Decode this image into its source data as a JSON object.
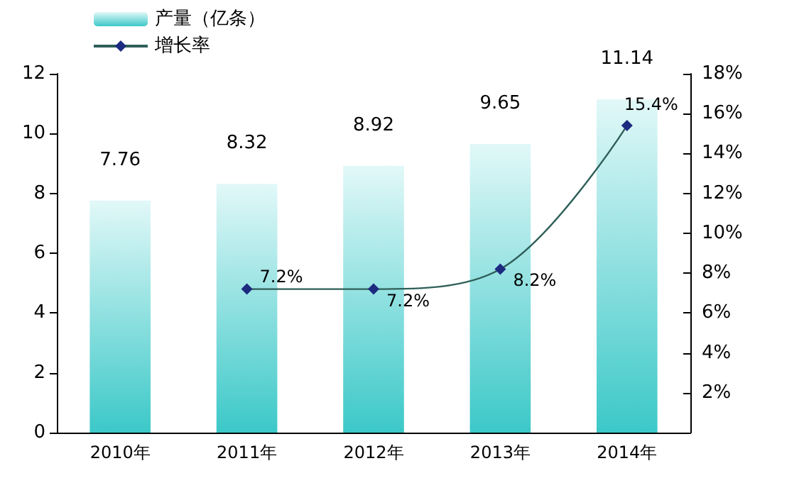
{
  "chart_data": {
    "type": "bar",
    "categories": [
      "2010年",
      "2011年",
      "2012年",
      "2013年",
      "2014年"
    ],
    "series": [
      {
        "name": "产量（亿条）",
        "color": "#3cc8c8",
        "values": [
          7.76,
          8.32,
          8.92,
          9.65,
          11.14
        ],
        "value_labels": [
          "7.76",
          "8.32",
          "8.92",
          "9.65",
          "11.14"
        ]
      },
      {
        "name": "增长率",
        "type": "line",
        "axis": "y2",
        "color": "#1c2a80",
        "values": [
          null,
          7.2,
          7.2,
          8.2,
          15.4
        ],
        "value_labels": [
          null,
          "7.2%",
          "7.2%",
          "8.2%",
          "15.4%"
        ]
      }
    ],
    "ylim": [
      0,
      12
    ],
    "yticks": [
      0,
      2,
      4,
      6,
      8,
      10,
      12
    ],
    "y2lim": [
      0,
      18
    ],
    "y2ticks": [
      {
        "value": 0,
        "label": null
      },
      {
        "value": 2,
        "label": "2%"
      },
      {
        "value": 4,
        "label": "4%"
      },
      {
        "value": 6,
        "label": "6%"
      },
      {
        "value": 8,
        "label": "8%"
      },
      {
        "value": 10,
        "label": "10%"
      },
      {
        "value": 12,
        "label": "12%"
      },
      {
        "value": 14,
        "label": "14%"
      },
      {
        "value": 16,
        "label": "16%"
      },
      {
        "value": 18,
        "label": "18%"
      }
    ],
    "marker": "diamond",
    "grid": false,
    "legend": "top left"
  }
}
